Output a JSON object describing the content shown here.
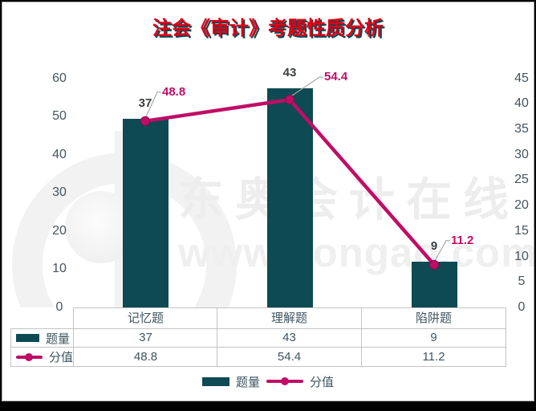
{
  "title": "注会《审计》考题性质分析",
  "watermark": {
    "line1": "东奥会计在线",
    "line2": "www.dongao.com"
  },
  "colors": {
    "bar": "#0d4a53",
    "line": "#c00d66",
    "line_marker_edge": "#8d0a50",
    "title_red": "#dd0016",
    "title_shadow": "#0d4a53",
    "axis_text": "#46555f",
    "table_text": "#3e5560",
    "bar_label_text": "#3a4045",
    "leader_gray": "#aaaaaa",
    "table_border": "#c3c3c3"
  },
  "chart_data": {
    "type": "bar",
    "combo_with_line": true,
    "title": "注会《审计》考题性质分析",
    "categories": [
      "记忆题",
      "理解题",
      "陷阱题"
    ],
    "series": [
      {
        "name": "题量",
        "kind": "bar",
        "axis": "right",
        "values": [
          37,
          43,
          9
        ],
        "color": "#0d4a53"
      },
      {
        "name": "分值",
        "kind": "line",
        "axis": "left",
        "values": [
          48.8,
          54.4,
          11.2
        ],
        "color": "#c00d66"
      }
    ],
    "left_axis": {
      "min": 0,
      "max": 60,
      "step": 10,
      "ticks": [
        60,
        50,
        40,
        30,
        20,
        10,
        0
      ]
    },
    "right_axis": {
      "min": 0,
      "max": 45,
      "step": 5,
      "ticks": [
        45,
        40,
        35,
        30,
        25,
        20,
        15,
        10,
        5,
        0
      ]
    },
    "grid": false,
    "legend_position": "bottom",
    "data_labels": {
      "bar": [
        "37",
        "43",
        "9"
      ],
      "line": [
        "48.8",
        "54.4",
        "11.2"
      ]
    }
  },
  "table": {
    "categories": [
      "记忆题",
      "理解题",
      "陷阱题"
    ],
    "rows": [
      {
        "label": "题量",
        "key": "bar-swatch",
        "values": [
          "37",
          "43",
          "9"
        ]
      },
      {
        "label": "分值",
        "key": "line-swatch",
        "values": [
          "48.8",
          "54.4",
          "11.2"
        ]
      }
    ]
  },
  "legend": {
    "items": [
      {
        "label": "题量",
        "key": "bar-swatch"
      },
      {
        "label": "分值",
        "key": "line-swatch"
      }
    ]
  }
}
